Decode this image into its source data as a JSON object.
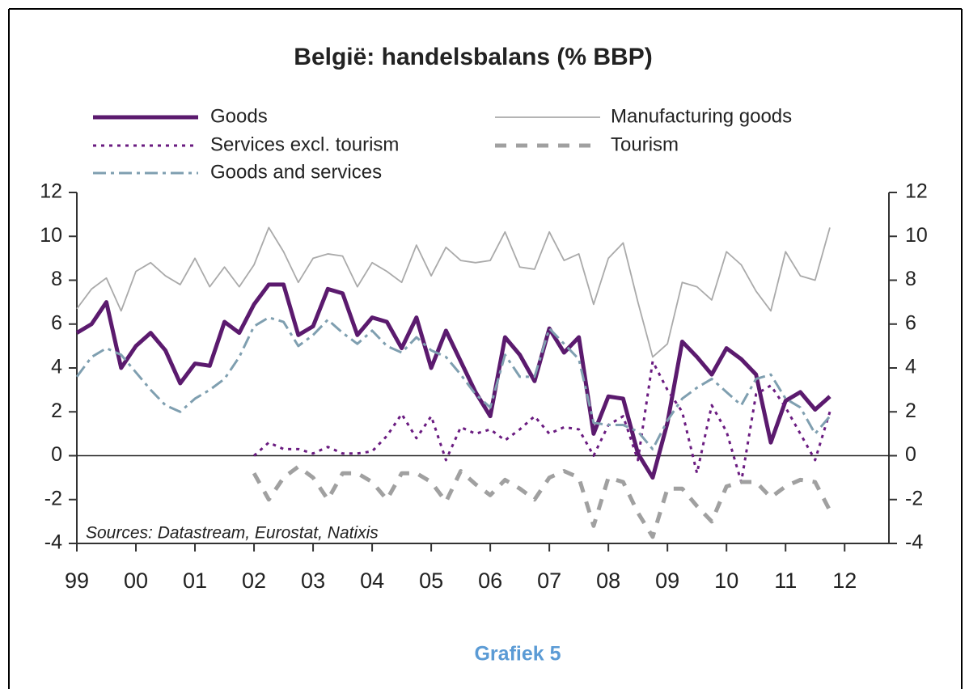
{
  "chart_data": {
    "type": "line",
    "title": "België: handelsbalans (% BBP)",
    "annotation": "Sources: Datastream, Eurostat, Natixis",
    "caption": "Grafiek 5",
    "x": [
      1999,
      1999.25,
      1999.5,
      1999.75,
      2000,
      2000.25,
      2000.5,
      2000.75,
      2001,
      2001.25,
      2001.5,
      2001.75,
      2002,
      2002.25,
      2002.5,
      2002.75,
      2003,
      2003.25,
      2003.5,
      2003.75,
      2004,
      2004.25,
      2004.5,
      2004.75,
      2005,
      2005.25,
      2005.5,
      2005.75,
      2006,
      2006.25,
      2006.5,
      2006.75,
      2007,
      2007.25,
      2007.5,
      2007.75,
      2008,
      2008.25,
      2008.5,
      2008.75,
      2009,
      2009.25,
      2009.5,
      2009.75,
      2010,
      2010.25,
      2010.5,
      2010.75,
      2011,
      2011.25,
      2011.5,
      2011.75
    ],
    "xlim": [
      1999,
      2012.75
    ],
    "xticks": [
      {
        "value": 1999,
        "label": "99"
      },
      {
        "value": 2000,
        "label": "00"
      },
      {
        "value": 2001,
        "label": "01"
      },
      {
        "value": 2002,
        "label": "02"
      },
      {
        "value": 2003,
        "label": "03"
      },
      {
        "value": 2004,
        "label": "04"
      },
      {
        "value": 2005,
        "label": "05"
      },
      {
        "value": 2006,
        "label": "06"
      },
      {
        "value": 2007,
        "label": "07"
      },
      {
        "value": 2008,
        "label": "08"
      },
      {
        "value": 2009,
        "label": "09"
      },
      {
        "value": 2010,
        "label": "10"
      },
      {
        "value": 2011,
        "label": "11"
      },
      {
        "value": 2012,
        "label": "12"
      }
    ],
    "ylim": [
      -4,
      12
    ],
    "yticks": [
      -4,
      -2,
      0,
      2,
      4,
      6,
      8,
      10,
      12
    ],
    "y2lim": [
      -4,
      12
    ],
    "y2ticks": [
      -4,
      -2,
      0,
      2,
      4,
      6,
      8,
      10,
      12
    ],
    "series": [
      {
        "name": "Goods",
        "color": "#5b1a6e",
        "values": [
          5.6,
          6.0,
          7.0,
          4.0,
          5.0,
          5.6,
          4.8,
          3.3,
          4.2,
          4.1,
          6.1,
          5.6,
          6.9,
          7.8,
          7.8,
          5.5,
          5.9,
          7.6,
          7.4,
          5.5,
          6.3,
          6.1,
          4.9,
          6.3,
          4.0,
          5.7,
          4.3,
          2.9,
          1.8,
          5.4,
          4.6,
          3.4,
          5.8,
          4.7,
          5.4,
          1.0,
          2.7,
          2.6,
          0.1,
          -1.0,
          1.5,
          5.2,
          4.5,
          3.7,
          4.9,
          4.4,
          3.7,
          0.6,
          2.5,
          2.9,
          2.1,
          2.7
        ]
      },
      {
        "name": "Manufacturing goods",
        "color": "#aaaaaa",
        "values": [
          6.7,
          7.6,
          8.1,
          6.6,
          8.4,
          8.8,
          8.2,
          7.8,
          9.0,
          7.7,
          8.6,
          7.7,
          8.7,
          10.4,
          9.3,
          7.9,
          9.0,
          9.2,
          9.1,
          7.7,
          8.8,
          8.4,
          7.9,
          9.6,
          8.2,
          9.5,
          8.9,
          8.8,
          8.9,
          10.2,
          8.6,
          8.5,
          10.2,
          8.9,
          9.2,
          6.9,
          9.0,
          9.7,
          7.0,
          4.5,
          5.1,
          7.9,
          7.7,
          7.1,
          9.3,
          8.7,
          7.5,
          6.6,
          9.3,
          8.2,
          8.0,
          10.4
        ]
      },
      {
        "name": "Services excl. tourism",
        "color": "#6a1b80",
        "values": [
          null,
          null,
          null,
          null,
          null,
          null,
          null,
          null,
          null,
          null,
          null,
          null,
          0.0,
          0.6,
          0.3,
          0.3,
          0.1,
          0.4,
          0.1,
          0.1,
          0.2,
          0.9,
          1.9,
          0.8,
          1.8,
          -0.2,
          1.3,
          1.0,
          1.2,
          0.7,
          1.2,
          1.8,
          1.0,
          1.3,
          1.2,
          0.0,
          1.4,
          1.8,
          -0.2,
          4.3,
          3.0,
          2.0,
          -0.8,
          2.3,
          1.1,
          -1.2,
          2.8,
          3.2,
          2.2,
          1.0,
          -0.2,
          2.0
        ]
      },
      {
        "name": "Tourism",
        "color": "#a0a0a0",
        "values": [
          null,
          null,
          null,
          null,
          null,
          null,
          null,
          null,
          null,
          null,
          null,
          null,
          -0.8,
          -2.0,
          -1.0,
          -0.5,
          -1.0,
          -2.0,
          -0.8,
          -0.8,
          -1.2,
          -2.0,
          -0.8,
          -0.8,
          -1.2,
          -2.1,
          -0.7,
          -1.3,
          -1.8,
          -1.1,
          -1.5,
          -2.0,
          -1.0,
          -0.7,
          -1.0,
          -3.2,
          -1.0,
          -1.2,
          -2.6,
          -3.7,
          -1.5,
          -1.5,
          -2.3,
          -3.0,
          -1.4,
          -1.2,
          -1.2,
          -1.9,
          -1.4,
          -1.1,
          -1.2,
          -2.5
        ]
      },
      {
        "name": "Goods and services",
        "color": "#7f9fb0",
        "values": [
          3.6,
          4.5,
          4.9,
          4.6,
          3.8,
          3.0,
          2.3,
          2.0,
          2.6,
          3.0,
          3.5,
          4.5,
          5.9,
          6.3,
          6.1,
          5.0,
          5.5,
          6.2,
          5.6,
          5.1,
          5.7,
          5.0,
          4.7,
          5.4,
          4.8,
          4.5,
          3.7,
          2.8,
          2.2,
          4.6,
          3.6,
          3.6,
          5.8,
          5.1,
          4.4,
          1.5,
          1.4,
          1.4,
          1.1,
          0.3,
          1.6,
          2.6,
          3.1,
          3.5,
          2.9,
          2.3,
          3.5,
          3.7,
          2.6,
          2.2,
          1.0,
          1.8
        ]
      }
    ]
  }
}
